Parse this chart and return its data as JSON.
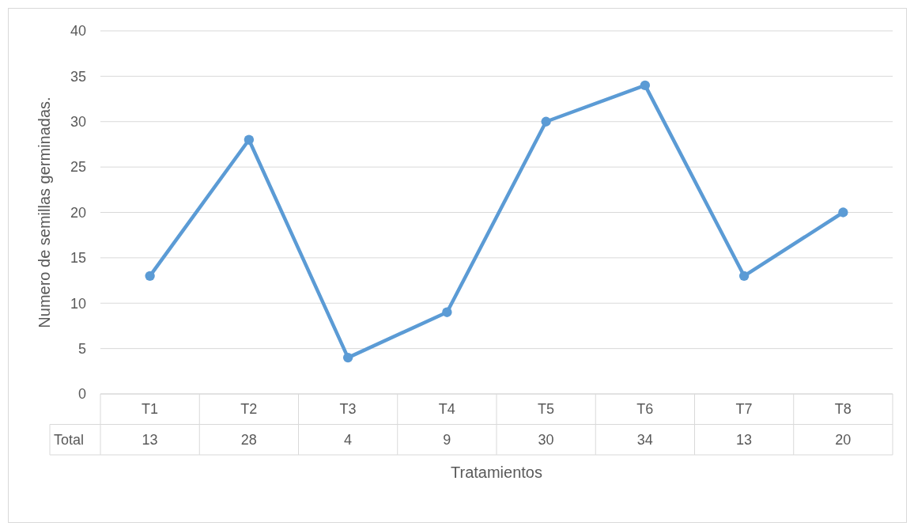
{
  "chart_data": {
    "type": "line",
    "xlabel": "Tratamientos",
    "ylabel": "Numero de semillas germinadas.",
    "categories": [
      "T1",
      "T2",
      "T3",
      "T4",
      "T5",
      "T6",
      "T7",
      "T8"
    ],
    "series": [
      {
        "name": "Total",
        "color": "#5b9bd5",
        "values": [
          13,
          28,
          4,
          9,
          30,
          34,
          13,
          20
        ]
      }
    ],
    "ylim": [
      0,
      40
    ],
    "yticks": [
      0,
      5,
      10,
      15,
      20,
      25,
      30,
      35,
      40
    ],
    "grid": "y",
    "marker": "circle",
    "line_style": "solid",
    "data_labels": true
  }
}
